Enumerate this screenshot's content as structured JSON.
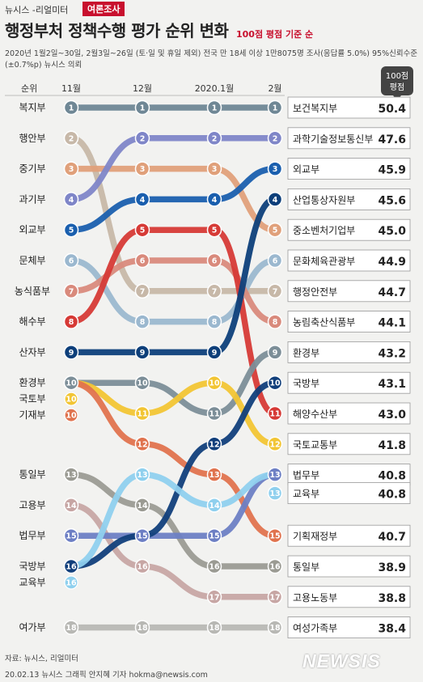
{
  "header": {
    "brand": "뉴시스 -리얼미터",
    "badge": "여론조사",
    "title": "행정부처 정책수행 평가 순위 변화",
    "subtitle": "100점 평점 기준 순",
    "note": "2020년 1월2일~30일, 2월3일~26일 (토·일 및 휴일 제외) 전국 만 18세 이상 1만8075명 조사(응답률 5.0%) 95%신뢰수준 (±0.7%p)  뉴시스 의뢰"
  },
  "footer": {
    "source": "자료: 뉴시스, 리얼미터",
    "credit": "20.02.13 뉴시스 그래픽 안지혜 기자 hokma@newsis.com",
    "logo": "NEWSIS"
  },
  "chart_data": {
    "type": "bump",
    "rank_label": "순위",
    "periods": [
      "11월",
      "12월",
      "2020.1월",
      "2월"
    ],
    "score_header": [
      "100점",
      "평점"
    ],
    "series": [
      {
        "name": "복지부",
        "feb_name": "보건복지부",
        "color": "#6f8795",
        "ranks": [
          1,
          1,
          1,
          1
        ],
        "score": "50.4"
      },
      {
        "name": "행안부",
        "feb_name": "행정안전부",
        "color": "#c7b8a8",
        "ranks": [
          2,
          7,
          7,
          7
        ],
        "score": "44.7"
      },
      {
        "name": "중기부",
        "feb_name": "중소벤처기업부",
        "color": "#e0a07a",
        "ranks": [
          3,
          3,
          3,
          5
        ],
        "score": "45.0"
      },
      {
        "name": "과기부",
        "feb_name": "과학기술정보통신부",
        "color": "#7f86c8",
        "ranks": [
          4,
          2,
          2,
          2
        ],
        "score": "47.6"
      },
      {
        "name": "외교부",
        "feb_name": "외교부",
        "color": "#1a5fae",
        "ranks": [
          5,
          4,
          4,
          3
        ],
        "score": "45.9"
      },
      {
        "name": "문체부",
        "feb_name": "문화체육관광부",
        "color": "#9bb8cf",
        "ranks": [
          6,
          8,
          8,
          6
        ],
        "score": "44.9"
      },
      {
        "name": "농식품부",
        "feb_name": "농림축산식품부",
        "color": "#d98a7c",
        "ranks": [
          7,
          6,
          6,
          8
        ],
        "score": "44.1"
      },
      {
        "name": "해수부",
        "feb_name": "해양수산부",
        "color": "#d63a36",
        "ranks": [
          8,
          5,
          5,
          11
        ],
        "score": "43.0"
      },
      {
        "name": "산자부",
        "feb_name": "산업통상자원부",
        "color": "#0d3f7a",
        "ranks": [
          9,
          9,
          9,
          4
        ],
        "score": "45.6"
      },
      {
        "name": "환경부",
        "feb_name": "환경부",
        "color": "#7c8e98",
        "ranks": [
          10,
          10,
          11,
          9
        ],
        "score": "43.2"
      },
      {
        "name": "국토부",
        "feb_name": "국토교통부",
        "color": "#f2c534",
        "ranks": [
          10,
          11,
          10,
          12
        ],
        "score": "41.8"
      },
      {
        "name": "기재부",
        "feb_name": "기획재정부",
        "color": "#e0734e",
        "ranks": [
          10,
          12,
          13,
          15
        ],
        "score": "40.7"
      },
      {
        "name": "통일부",
        "feb_name": "통일부",
        "color": "#9b9b93",
        "ranks": [
          13,
          14,
          16,
          16
        ],
        "score": "38.9"
      },
      {
        "name": "고용부",
        "feb_name": "고용노동부",
        "color": "#c7a6a4",
        "ranks": [
          14,
          16,
          17,
          17
        ],
        "score": "38.8"
      },
      {
        "name": "법무부",
        "feb_name": "법무부",
        "color": "#6d7fc4",
        "ranks": [
          15,
          15,
          15,
          13
        ],
        "score": "40.8"
      },
      {
        "name": "국방부",
        "feb_name": "국방부",
        "color": "#113f7b",
        "ranks": [
          16,
          15,
          12,
          10
        ],
        "score": "43.1"
      },
      {
        "name": "교육부",
        "feb_name": "교육부",
        "color": "#8fd0ee",
        "ranks": [
          16,
          13,
          14,
          13
        ],
        "score": "40.8"
      },
      {
        "name": "여가부",
        "feb_name": "여성가족부",
        "color": "#b8b8b4",
        "ranks": [
          18,
          18,
          18,
          18
        ],
        "score": "38.4"
      }
    ]
  }
}
